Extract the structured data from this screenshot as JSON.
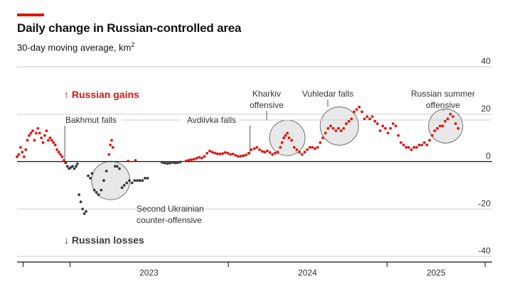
{
  "header": {
    "title": "Daily change in Russian-controlled area",
    "subtitle_text": "30-day moving average, km",
    "subtitle_sup": "2"
  },
  "legend": {
    "gains": "↑ Russian gains",
    "losses": "↓ Russian losses"
  },
  "colors": {
    "gain": "#e3120b",
    "loss": "#3c3c3c",
    "accent": "#e3120b",
    "circle_fill": "#e8e8e8",
    "circle_stroke": "#707070"
  },
  "annotations": {
    "bakhmut": "Bakhmut falls",
    "avdiivka": "Avdiivka falls",
    "kharkiv_1": "Kharkiv",
    "kharkiv_2": "offensive",
    "vuhledar": "Vuhledar falls",
    "summer_1": "Russian summer",
    "summer_2": "offensive",
    "counter_1": "Second Ukrainian",
    "counter_2": "counter-offensive"
  },
  "chart_data": {
    "type": "scatter",
    "title": "Daily change in Russian-controlled area",
    "subtitle": "30-day moving average, km2",
    "xlabel": "",
    "ylabel": "",
    "ylim": [
      -40,
      40
    ],
    "y_ticks": [
      40,
      20,
      0,
      -20,
      -40
    ],
    "x_ticks": [
      "2023",
      "2024",
      "2025"
    ],
    "x_range": [
      "2022-09-01",
      "2025-08-31"
    ],
    "grid": true,
    "series": [
      {
        "name": "Russian gains",
        "color": "#e3120b",
        "points": [
          [
            "2022-09-01",
            2
          ],
          [
            "2022-09-05",
            3
          ],
          [
            "2022-09-09",
            6
          ],
          [
            "2022-09-13",
            4
          ],
          [
            "2022-09-17",
            2
          ],
          [
            "2022-09-21",
            5
          ],
          [
            "2022-09-25",
            9
          ],
          [
            "2022-09-29",
            11
          ],
          [
            "2022-10-03",
            12
          ],
          [
            "2022-10-07",
            13
          ],
          [
            "2022-10-11",
            9
          ],
          [
            "2022-10-15",
            12
          ],
          [
            "2022-10-19",
            14
          ],
          [
            "2022-10-23",
            12
          ],
          [
            "2022-10-27",
            10
          ],
          [
            "2022-10-31",
            8
          ],
          [
            "2022-11-04",
            11
          ],
          [
            "2022-11-08",
            13
          ],
          [
            "2022-11-12",
            9
          ],
          [
            "2022-11-16",
            10
          ],
          [
            "2022-11-20",
            9
          ],
          [
            "2022-11-24",
            8
          ],
          [
            "2022-11-28",
            7
          ],
          [
            "2022-12-02",
            5
          ],
          [
            "2022-12-06",
            4
          ],
          [
            "2022-12-10",
            3
          ],
          [
            "2022-12-14",
            2
          ],
          [
            "2022-12-18",
            0.5
          ],
          [
            "2023-04-01",
            3
          ],
          [
            "2023-04-04",
            7
          ],
          [
            "2023-04-07",
            9
          ],
          [
            "2023-04-10",
            6
          ],
          [
            "2023-05-15",
            0.2
          ],
          [
            "2023-06-01",
            0.5
          ],
          [
            "2023-09-26",
            0.3
          ],
          [
            "2023-10-02",
            0.6
          ],
          [
            "2023-10-08",
            0.8
          ],
          [
            "2023-10-14",
            1
          ],
          [
            "2023-10-20",
            1.4
          ],
          [
            "2023-10-26",
            1.8
          ],
          [
            "2023-11-01",
            1.5
          ],
          [
            "2023-11-07",
            2.2
          ],
          [
            "2023-11-13",
            3.5
          ],
          [
            "2023-11-19",
            4.5
          ],
          [
            "2023-11-25",
            4
          ],
          [
            "2023-12-01",
            3.6
          ],
          [
            "2023-12-07",
            3.3
          ],
          [
            "2023-12-13",
            3.2
          ],
          [
            "2023-12-19",
            3.4
          ],
          [
            "2023-12-25",
            3.8
          ],
          [
            "2023-12-31",
            3.5
          ],
          [
            "2024-01-06",
            3
          ],
          [
            "2024-01-12",
            3.2
          ],
          [
            "2024-01-18",
            2.6
          ],
          [
            "2024-01-24",
            2.2
          ],
          [
            "2024-01-30",
            2.3
          ],
          [
            "2024-02-05",
            2.5
          ],
          [
            "2024-02-11",
            2.8
          ],
          [
            "2024-02-17",
            3.5
          ],
          [
            "2024-02-23",
            5
          ],
          [
            "2024-03-01",
            5.5
          ],
          [
            "2024-03-07",
            6
          ],
          [
            "2024-03-13",
            5
          ],
          [
            "2024-03-19",
            4.3
          ],
          [
            "2024-03-25",
            4
          ],
          [
            "2024-03-31",
            4.5
          ],
          [
            "2024-04-06",
            3.8
          ],
          [
            "2024-04-12",
            3
          ],
          [
            "2024-04-18",
            3.5
          ],
          [
            "2024-04-24",
            4
          ],
          [
            "2024-04-30",
            6
          ],
          [
            "2024-05-04",
            8
          ],
          [
            "2024-05-08",
            10
          ],
          [
            "2024-05-12",
            11
          ],
          [
            "2024-05-16",
            12
          ],
          [
            "2024-05-20",
            10
          ],
          [
            "2024-05-26",
            9
          ],
          [
            "2024-06-01",
            6
          ],
          [
            "2024-06-07",
            5
          ],
          [
            "2024-06-13",
            4
          ],
          [
            "2024-06-19",
            3
          ],
          [
            "2024-06-25",
            4
          ],
          [
            "2024-07-01",
            5
          ],
          [
            "2024-07-07",
            6
          ],
          [
            "2024-07-13",
            6
          ],
          [
            "2024-07-19",
            5.5
          ],
          [
            "2024-07-25",
            6
          ],
          [
            "2024-07-31",
            8
          ],
          [
            "2024-08-06",
            10
          ],
          [
            "2024-08-12",
            12
          ],
          [
            "2024-08-18",
            14
          ],
          [
            "2024-08-24",
            15
          ],
          [
            "2024-08-30",
            14
          ],
          [
            "2024-09-05",
            13
          ],
          [
            "2024-09-11",
            14
          ],
          [
            "2024-09-17",
            13
          ],
          [
            "2024-09-23",
            14
          ],
          [
            "2024-09-29",
            16
          ],
          [
            "2024-10-05",
            17
          ],
          [
            "2024-10-11",
            18
          ],
          [
            "2024-10-17",
            21
          ],
          [
            "2024-10-23",
            22
          ],
          [
            "2024-10-29",
            23
          ],
          [
            "2024-11-04",
            21
          ],
          [
            "2024-11-10",
            18
          ],
          [
            "2024-11-16",
            19
          ],
          [
            "2024-11-22",
            18
          ],
          [
            "2024-11-28",
            19
          ],
          [
            "2024-12-04",
            17
          ],
          [
            "2024-12-10",
            16
          ],
          [
            "2024-12-16",
            13
          ],
          [
            "2024-12-22",
            15
          ],
          [
            "2024-12-28",
            14
          ],
          [
            "2025-01-03",
            12
          ],
          [
            "2025-01-09",
            14
          ],
          [
            "2025-01-15",
            16
          ],
          [
            "2025-01-21",
            15
          ],
          [
            "2025-01-27",
            11
          ],
          [
            "2025-02-02",
            8
          ],
          [
            "2025-02-08",
            7
          ],
          [
            "2025-02-14",
            6
          ],
          [
            "2025-02-20",
            6
          ],
          [
            "2025-02-26",
            5
          ],
          [
            "2025-03-04",
            6
          ],
          [
            "2025-03-10",
            6
          ],
          [
            "2025-03-16",
            7
          ],
          [
            "2025-03-22",
            7
          ],
          [
            "2025-03-28",
            8
          ],
          [
            "2025-04-03",
            7
          ],
          [
            "2025-04-09",
            9
          ],
          [
            "2025-04-15",
            11
          ],
          [
            "2025-04-21",
            13
          ],
          [
            "2025-04-27",
            14
          ],
          [
            "2025-05-03",
            15
          ],
          [
            "2025-05-09",
            15
          ],
          [
            "2025-05-15",
            17
          ],
          [
            "2025-05-21",
            18
          ],
          [
            "2025-05-27",
            20
          ],
          [
            "2025-06-02",
            19
          ],
          [
            "2025-06-08",
            16
          ],
          [
            "2025-06-14",
            14
          ]
        ]
      },
      {
        "name": "Russian losses",
        "color": "#3c3c3c",
        "points": [
          [
            "2022-12-22",
            -0.5
          ],
          [
            "2022-12-26",
            -2
          ],
          [
            "2022-12-30",
            -3
          ],
          [
            "2023-01-03",
            -2.5
          ],
          [
            "2023-01-07",
            -2
          ],
          [
            "2023-01-11",
            -3
          ],
          [
            "2023-01-15",
            -2
          ],
          [
            "2023-01-18",
            -1
          ],
          [
            "2023-01-22",
            -14
          ],
          [
            "2023-01-26",
            -17
          ],
          [
            "2023-01-30",
            -20
          ],
          [
            "2023-02-03",
            -22
          ],
          [
            "2023-02-07",
            -21
          ],
          [
            "2023-02-12",
            -6
          ],
          [
            "2023-02-17",
            -7
          ],
          [
            "2023-02-21",
            -5
          ],
          [
            "2023-02-26",
            -12
          ],
          [
            "2023-03-03",
            -13
          ],
          [
            "2023-03-08",
            -14
          ],
          [
            "2023-03-14",
            -12
          ],
          [
            "2023-03-20",
            -8
          ],
          [
            "2023-03-26",
            -4
          ],
          [
            "2023-04-15",
            -2
          ],
          [
            "2023-04-20",
            -2
          ],
          [
            "2023-04-25",
            -3
          ],
          [
            "2023-05-01",
            -11
          ],
          [
            "2023-05-06",
            -10
          ],
          [
            "2023-05-12",
            -9
          ],
          [
            "2023-05-18",
            -8
          ],
          [
            "2023-05-24",
            -9
          ],
          [
            "2023-05-30",
            -8
          ],
          [
            "2023-06-05",
            -8
          ],
          [
            "2023-06-11",
            -8
          ],
          [
            "2023-06-17",
            -8
          ],
          [
            "2023-06-23",
            -7
          ],
          [
            "2023-06-29",
            -7
          ],
          [
            "2023-08-01",
            -0.3
          ],
          [
            "2023-08-07",
            -0.6
          ],
          [
            "2023-08-13",
            -0.8
          ],
          [
            "2023-08-19",
            -0.7
          ],
          [
            "2023-08-25",
            -0.4
          ],
          [
            "2023-08-31",
            -0.6
          ],
          [
            "2023-09-06",
            -0.5
          ],
          [
            "2023-09-12",
            -0.2
          ]
        ]
      }
    ]
  }
}
